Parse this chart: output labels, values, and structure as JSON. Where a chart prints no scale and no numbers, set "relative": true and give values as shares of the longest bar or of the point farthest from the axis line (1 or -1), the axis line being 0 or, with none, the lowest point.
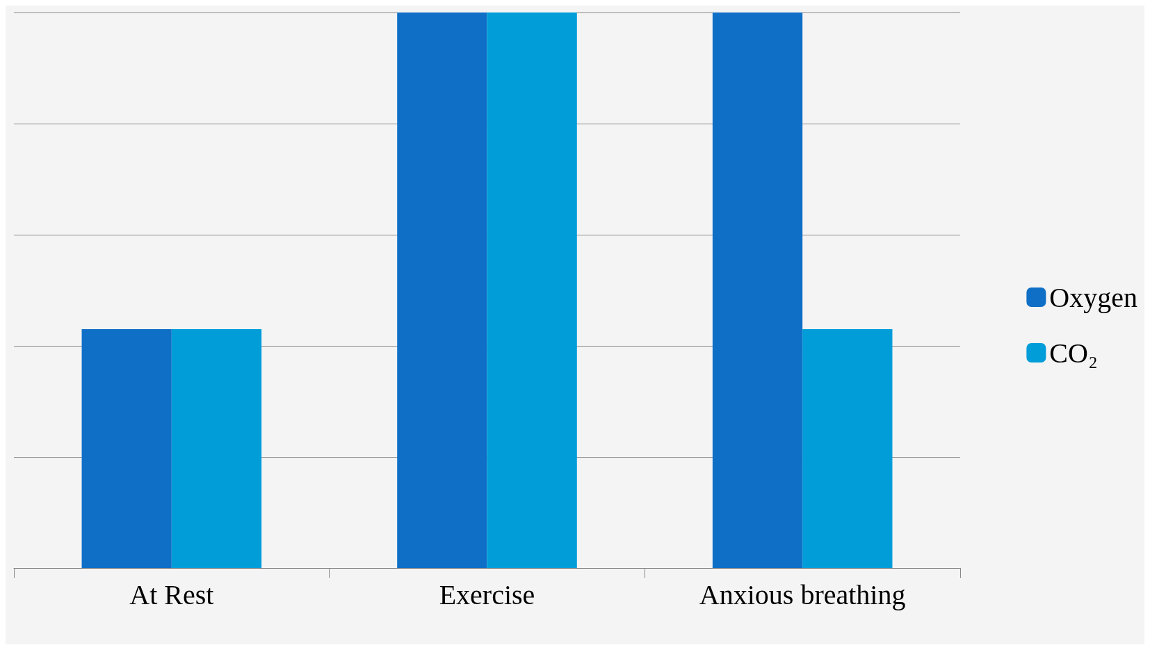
{
  "chart_data": {
    "type": "bar",
    "relative": true,
    "categories": [
      "At Rest",
      "Exercise",
      "Anxious breathing"
    ],
    "series": [
      {
        "name": "Oxygen",
        "color": "#0f6fc6",
        "values": [
          0.43,
          1,
          1
        ]
      },
      {
        "name": "CO₂",
        "color": "#009dd9",
        "values": [
          0.43,
          1,
          0.43
        ]
      }
    ],
    "grid": "y",
    "legend": "right"
  }
}
